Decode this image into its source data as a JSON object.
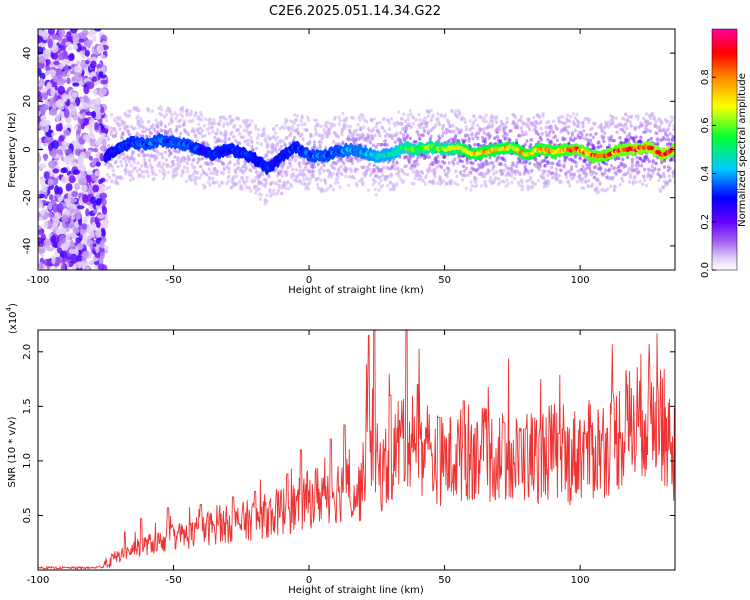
{
  "title": "C2E6.2025.051.14.34.G22",
  "chart_data": [
    {
      "id": "spectrogram",
      "type": "heatmap",
      "xlabel": "Height of straight line (km)",
      "ylabel": "Frequency (Hz)",
      "xlim": [
        -100,
        135
      ],
      "ylim": [
        -50,
        50
      ],
      "xticks": [
        -100,
        -50,
        0,
        50,
        100
      ],
      "yticks": [
        -40,
        -20,
        0,
        20,
        40
      ],
      "colorbar": {
        "label": "Normalized spectral amplitude",
        "range": [
          0,
          1
        ],
        "ticks": [
          0.0,
          0.2,
          0.4,
          0.6,
          0.8
        ],
        "tick_labels": [
          "0.0",
          "0.2",
          "0.4",
          "0.6",
          "0.8"
        ],
        "colormap": [
          "#e6e0f5",
          "#7b00e6",
          "#0000ff",
          "#00e5ff",
          "#00ff00",
          "#ffff00",
          "#ff9900",
          "#ff0000",
          "#ff00a0"
        ]
      },
      "noise_region_x": [
        -100,
        -75
      ],
      "ridge": {
        "description_values": "dominant frequency (Hz) vs height (km)",
        "x": [
          -75,
          -70,
          -65,
          -60,
          -55,
          -50,
          -45,
          -40,
          -35,
          -30,
          -25,
          -20,
          -15,
          -10,
          -5,
          0,
          5,
          10,
          15,
          20,
          25,
          30,
          35,
          40,
          45,
          50,
          55,
          60,
          65,
          70,
          75,
          80,
          85,
          90,
          95,
          100,
          105,
          110,
          115,
          120,
          125,
          130,
          135
        ],
        "y": [
          -3,
          1,
          3,
          2,
          4,
          3,
          2,
          0,
          -2,
          0,
          -1,
          -4,
          -8,
          -3,
          1,
          -2,
          -3,
          -1,
          0,
          -1,
          -3,
          -2,
          1,
          0,
          1,
          0,
          1,
          -2,
          -1,
          0,
          1,
          -2,
          0,
          -1,
          0,
          0,
          -3,
          -2,
          0,
          0,
          1,
          -2,
          0
        ],
        "amplitude": [
          0.25,
          0.3,
          0.32,
          0.35,
          0.35,
          0.35,
          0.35,
          0.3,
          0.3,
          0.3,
          0.3,
          0.28,
          0.3,
          0.3,
          0.3,
          0.35,
          0.35,
          0.35,
          0.4,
          0.4,
          0.45,
          0.45,
          0.55,
          0.6,
          0.6,
          0.6,
          0.65,
          0.7,
          0.72,
          0.72,
          0.7,
          0.72,
          0.75,
          0.75,
          0.78,
          0.8,
          0.8,
          0.8,
          0.82,
          0.85,
          0.85,
          0.85,
          0.85
        ]
      }
    },
    {
      "id": "snr",
      "type": "line",
      "xlabel": "Height of straight line (km)",
      "ylabel": "SNR (10 * v/v)",
      "y_multiplier_label": "(x10",
      "y_multiplier_exp": "4",
      "y_multiplier_close": ")",
      "xlim": [
        -100,
        135
      ],
      "ylim": [
        0.0,
        2.2
      ],
      "xticks": [
        -100,
        -50,
        0,
        50,
        100
      ],
      "yticks": [
        0.5,
        1.0,
        1.5,
        2.0
      ],
      "ytick_labels": [
        "0.5",
        "1.0",
        "1.5",
        "2.0"
      ],
      "color": "#ee3333",
      "series": [
        {
          "x": [
            -100,
            -90,
            -80,
            -76,
            -72,
            -65,
            -60,
            -55,
            -50,
            -45,
            -40,
            -35,
            -30,
            -25,
            -20,
            -15,
            -10,
            -5,
            0,
            5,
            10,
            15,
            18,
            20,
            22,
            24,
            26,
            30,
            35,
            38,
            40,
            45,
            50,
            55,
            60,
            65,
            70,
            75,
            80,
            85,
            90,
            95,
            100,
            105,
            110,
            115,
            120,
            125,
            128,
            130,
            132,
            135
          ],
          "values": [
            0.02,
            0.02,
            0.02,
            0.03,
            0.1,
            0.18,
            0.22,
            0.25,
            0.3,
            0.3,
            0.35,
            0.38,
            0.4,
            0.42,
            0.45,
            0.48,
            0.52,
            0.55,
            0.62,
            0.68,
            0.7,
            0.72,
            0.65,
            0.8,
            1.45,
            1.0,
            0.85,
            0.95,
            1.2,
            1.25,
            1.15,
            1.0,
            0.95,
            1.0,
            1.05,
            1.0,
            1.0,
            0.95,
            1.0,
            1.0,
            1.05,
            0.95,
            1.05,
            1.05,
            1.1,
            1.2,
            1.3,
            1.4,
            1.45,
            1.35,
            1.15,
            1.0
          ],
          "peaks": [
            [
              -68,
              0.35
            ],
            [
              -62,
              0.47
            ],
            [
              -52,
              0.57
            ],
            [
              -40,
              0.6
            ],
            [
              -28,
              0.67
            ],
            [
              -20,
              0.72
            ],
            [
              -8,
              0.88
            ],
            [
              -3,
              1.1
            ],
            [
              8,
              1.2
            ],
            [
              13,
              1.33
            ],
            [
              22,
              2.15
            ],
            [
              24,
              2.2
            ],
            [
              30,
              1.6
            ],
            [
              36,
              2.2
            ],
            [
              40,
              1.7
            ],
            [
              48,
              1.4
            ],
            [
              57,
              1.55
            ],
            [
              62,
              1.35
            ],
            [
              72,
              1.35
            ],
            [
              80,
              1.3
            ],
            [
              92,
              1.25
            ],
            [
              102,
              1.25
            ],
            [
              110,
              1.3
            ]
          ]
        }
      ]
    }
  ]
}
